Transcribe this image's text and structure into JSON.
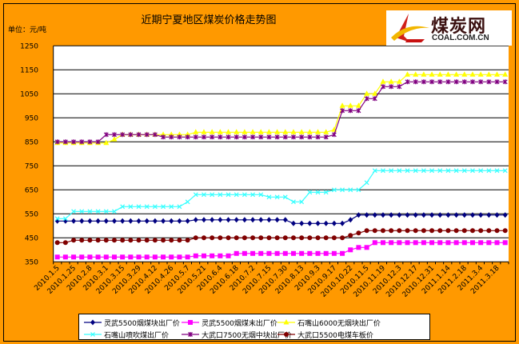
{
  "chart_data": {
    "type": "line",
    "title": "近期宁夏地区煤炭价格走势图",
    "ylabel": "单位：元/吨",
    "xlabel": "",
    "ylim": [
      350,
      1250
    ],
    "yticks": [
      350,
      450,
      550,
      650,
      750,
      850,
      950,
      1050,
      1150,
      1250
    ],
    "grid": true,
    "legend_position": "bottom",
    "point_count": 56,
    "x_tick_labels": [
      "2010.1.5",
      "2010.1.25",
      "2010.2.8",
      "2010.3.1",
      "2010.3.15",
      "2010.3.29",
      "2010.4.12",
      "2010.4.26",
      "2010.5.7",
      "2010.5.21",
      "2010.6.4",
      "2010.6.18",
      "2010.7.2",
      "2010.7.15",
      "2010.7.30",
      "2010.8.13",
      "2010.9.3",
      "2010.9.17",
      "2010.10.22",
      "2010.11.5",
      "2010.11.19",
      "2010.12.3",
      "2010.12.17",
      "2010.12.31",
      "2011.1.14",
      "2011.2.18",
      "2011.3.4",
      "2011.3.18"
    ],
    "series": [
      {
        "name": "灵武5500烟煤块出厂价",
        "color": "#000080",
        "marker": "diamond",
        "values": [
          520,
          520,
          520,
          520,
          520,
          520,
          520,
          520,
          520,
          520,
          520,
          520,
          520,
          520,
          520,
          520,
          520,
          525,
          525,
          525,
          525,
          525,
          525,
          525,
          525,
          525,
          525,
          525,
          525,
          510,
          510,
          510,
          510,
          510,
          510,
          510,
          525,
          545,
          545,
          545,
          545,
          545,
          545,
          545,
          545,
          545,
          545,
          545,
          545,
          545,
          545,
          545,
          545,
          545,
          545,
          545
        ]
      },
      {
        "name": "灵武5500烟煤末出厂价",
        "color": "#FF00FF",
        "marker": "square",
        "values": [
          370,
          370,
          370,
          370,
          370,
          370,
          370,
          370,
          370,
          370,
          370,
          370,
          370,
          370,
          370,
          370,
          370,
          375,
          375,
          375,
          375,
          375,
          385,
          385,
          385,
          385,
          385,
          385,
          385,
          385,
          385,
          385,
          385,
          385,
          385,
          385,
          400,
          410,
          410,
          430,
          430,
          430,
          430,
          430,
          430,
          430,
          430,
          430,
          430,
          430,
          430,
          430,
          430,
          430,
          430,
          430
        ]
      },
      {
        "name": "石嘴山6000无烟块出厂价",
        "color": "#FFFF00",
        "marker": "triangle",
        "values": [
          845,
          845,
          845,
          845,
          845,
          845,
          845,
          860,
          880,
          880,
          880,
          880,
          880,
          880,
          880,
          880,
          880,
          890,
          890,
          890,
          890,
          890,
          890,
          890,
          890,
          890,
          890,
          890,
          890,
          890,
          890,
          890,
          890,
          890,
          900,
          1000,
          1000,
          1000,
          1050,
          1050,
          1100,
          1100,
          1100,
          1130,
          1130,
          1130,
          1130,
          1130,
          1130,
          1130,
          1130,
          1130,
          1130,
          1130,
          1130,
          1130
        ]
      },
      {
        "name": "石嘴山喷吹煤出厂价",
        "color": "#33FFFF",
        "marker": "x",
        "values": [
          530,
          530,
          560,
          560,
          560,
          560,
          560,
          560,
          580,
          580,
          580,
          580,
          580,
          580,
          580,
          580,
          600,
          630,
          630,
          630,
          630,
          630,
          630,
          630,
          630,
          630,
          620,
          620,
          620,
          600,
          600,
          640,
          640,
          640,
          650,
          650,
          650,
          650,
          680,
          730,
          730,
          730,
          730,
          730,
          730,
          730,
          730,
          730,
          730,
          730,
          730,
          730,
          730,
          730,
          730,
          730
        ]
      },
      {
        "name": "大武口7500无烟中块出厂价",
        "color": "#800080",
        "marker": "star",
        "values": [
          850,
          850,
          850,
          850,
          850,
          850,
          880,
          880,
          880,
          880,
          880,
          880,
          880,
          870,
          870,
          870,
          870,
          870,
          870,
          870,
          870,
          870,
          870,
          870,
          870,
          870,
          870,
          870,
          870,
          870,
          870,
          870,
          870,
          870,
          880,
          980,
          980,
          980,
          1030,
          1030,
          1080,
          1080,
          1080,
          1100,
          1100,
          1100,
          1100,
          1100,
          1100,
          1100,
          1100,
          1100,
          1100,
          1100,
          1100,
          1100
        ]
      },
      {
        "name": "大武口5500电煤车板价",
        "color": "#800000",
        "marker": "circle",
        "values": [
          430,
          430,
          440,
          440,
          440,
          440,
          440,
          440,
          440,
          440,
          440,
          440,
          440,
          440,
          440,
          440,
          440,
          450,
          450,
          450,
          450,
          450,
          450,
          450,
          450,
          450,
          450,
          450,
          450,
          450,
          450,
          450,
          450,
          450,
          450,
          450,
          460,
          470,
          480,
          480,
          480,
          480,
          480,
          480,
          480,
          480,
          480,
          480,
          480,
          480,
          480,
          480,
          480,
          480,
          480,
          480
        ]
      }
    ]
  },
  "logo": {
    "cn": "煤炭网",
    "en": "COAL.COM.CN"
  },
  "colors": {
    "background": "#FF9900",
    "plot": "#FFFFFF"
  }
}
